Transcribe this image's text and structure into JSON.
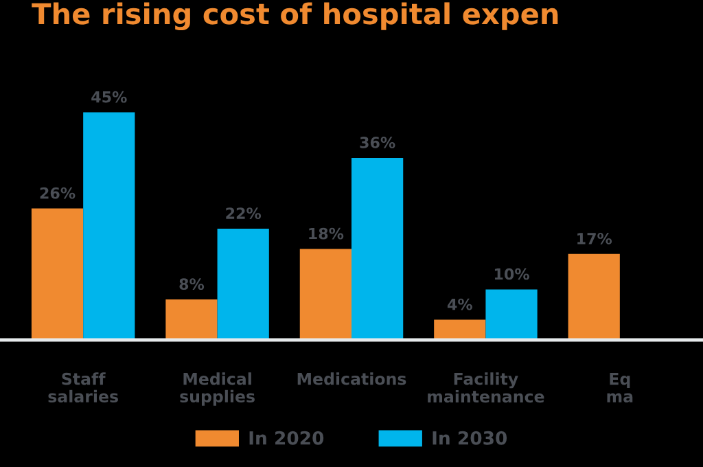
{
  "chart_data": {
    "type": "bar",
    "title": "The rising cost of hospital expen",
    "categories": [
      "Staff\nsalaries",
      "Medical\nsupplies",
      "Medications",
      "Facility\nmaintenance",
      "Eq\nma"
    ],
    "series": [
      {
        "name": "In 2020",
        "color": "#f08a30",
        "values": [
          26,
          8,
          18,
          4,
          17
        ],
        "value_labels": [
          "26%",
          "8%",
          "18%",
          "4%",
          "17%"
        ]
      },
      {
        "name": "In 2030",
        "color": "#00b5ec",
        "values": [
          45,
          22,
          36,
          10,
          null
        ],
        "value_labels": [
          "45%",
          "22%",
          "36%",
          "10%",
          null
        ]
      }
    ],
    "legend": "bottom",
    "tick_labels": "x"
  }
}
